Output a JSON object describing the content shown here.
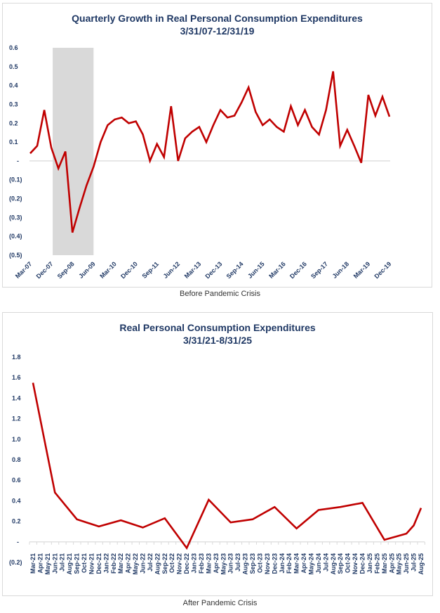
{
  "chart_data": [
    {
      "type": "line",
      "title": "Quarterly Growth in  Real Personal Consumption Expenditures",
      "subtitle": "3/31/07-12/31/19",
      "caption": "Before Pandemic Crisis",
      "xlabel": "",
      "ylabel": "",
      "ylim": [
        -0.5,
        0.6
      ],
      "yticks": [
        0.6,
        0.5,
        0.4,
        0.3,
        0.2,
        0.1,
        0,
        -0.1,
        -0.2,
        -0.3,
        -0.4,
        -0.5
      ],
      "ytick_labels": [
        "0.6",
        "0.5",
        "0.4",
        "0.3",
        "0.2",
        "0.1",
        "-",
        "(0.1)",
        "(0.2)",
        "(0.3)",
        "(0.4)",
        "(0.5)"
      ],
      "x_tick_labels": [
        "Mar-07",
        "Dec-07",
        "Sep-08",
        "Jun-09",
        "Mar-10",
        "Dec-10",
        "Sep-11",
        "Jun-12",
        "Mar-13",
        "Dec-13",
        "Sep-14",
        "Jun-15",
        "Mar-16",
        "Dec-16",
        "Sep-17",
        "Jun-18",
        "Mar-19",
        "Dec-19"
      ],
      "x_tick_every": 3,
      "grid": false,
      "recession_shading": {
        "from": "Dec-07",
        "to": "Jun-09",
        "color": "#d9d9d9"
      },
      "line_color": "#c00000",
      "x": [
        "Mar-07",
        "Jun-07",
        "Sep-07",
        "Dec-07",
        "Mar-08",
        "Jun-08",
        "Sep-08",
        "Dec-08",
        "Mar-09",
        "Jun-09",
        "Sep-09",
        "Dec-09",
        "Mar-10",
        "Jun-10",
        "Sep-10",
        "Dec-10",
        "Mar-11",
        "Jun-11",
        "Sep-11",
        "Dec-11",
        "Mar-12",
        "Jun-12",
        "Sep-12",
        "Dec-12",
        "Mar-13",
        "Jun-13",
        "Sep-13",
        "Dec-13",
        "Mar-14",
        "Jun-14",
        "Sep-14",
        "Dec-14",
        "Mar-15",
        "Jun-15",
        "Sep-15",
        "Dec-15",
        "Mar-16",
        "Jun-16",
        "Sep-16",
        "Dec-16",
        "Mar-17",
        "Jun-17",
        "Sep-17",
        "Dec-17",
        "Mar-18",
        "Jun-18",
        "Sep-18",
        "Dec-18",
        "Mar-19",
        "Jun-19",
        "Sep-19",
        "Dec-19"
      ],
      "series": [
        {
          "name": "Quarterly Growth",
          "values": [
            0.04,
            0.08,
            0.27,
            0.07,
            -0.04,
            0.05,
            -0.38,
            -0.25,
            -0.13,
            -0.03,
            0.1,
            0.19,
            0.22,
            0.23,
            0.2,
            0.21,
            0.14,
            0.0,
            0.09,
            0.02,
            0.29,
            0.0,
            0.12,
            0.155,
            0.18,
            0.1,
            0.19,
            0.27,
            0.23,
            0.24,
            0.31,
            0.39,
            0.26,
            0.19,
            0.22,
            0.18,
            0.155,
            0.29,
            0.19,
            0.27,
            0.18,
            0.14,
            0.27,
            0.475,
            0.08,
            0.165,
            0.08,
            -0.01,
            0.35,
            0.24,
            0.34,
            0.235
          ]
        }
      ]
    },
    {
      "type": "line",
      "title": "Real Personal Consumption  Expenditures",
      "subtitle": "3/31/21-8/31/25",
      "caption": "After Pandemic Crisis",
      "xlabel": "",
      "ylabel": "",
      "ylim": [
        -0.2,
        1.8
      ],
      "yticks": [
        1.8,
        1.6,
        1.4,
        1.2,
        1.0,
        0.8,
        0.6,
        0.4,
        0.2,
        0,
        -0.2
      ],
      "ytick_labels": [
        "1.8",
        "1.6",
        "1.4",
        "1.2",
        "1.0",
        "0.8",
        "0.6",
        "0.4",
        "0.2",
        "-",
        "(0.2)"
      ],
      "grid": false,
      "line_color": "#c00000",
      "x": [
        "Mar-21",
        "Apr-21",
        "May-21",
        "Jun-21",
        "Jul-21",
        "Aug-21",
        "Sep-21",
        "Oct-21",
        "Nov-21",
        "Dec-21",
        "Jan-22",
        "Feb-22",
        "Mar-22",
        "Apr-22",
        "May-22",
        "Jun-22",
        "Jul-22",
        "Aug-22",
        "Sep-22",
        "Oct-22",
        "Nov-22",
        "Dec-22",
        "Jan-23",
        "Feb-23",
        "Mar-23",
        "Apr-23",
        "May-23",
        "Jun-23",
        "Jul-23",
        "Aug-23",
        "Sep-23",
        "Oct-23",
        "Nov-23",
        "Dec-23",
        "Jan-24",
        "Feb-24",
        "Mar-24",
        "Apr-24",
        "May-24",
        "Jun-24",
        "Jul-24",
        "Aug-24",
        "Sep-24",
        "Oct-24",
        "Nov-24",
        "Dec-24",
        "Jan-25",
        "Feb-25",
        "Mar-25",
        "Apr-25",
        "May-25",
        "Jun-25",
        "Jul-25",
        "Aug-25"
      ],
      "series": [
        {
          "name": "Real PCE",
          "points": [
            {
              "x": "Mar-21",
              "y": 1.55
            },
            {
              "x": "Jun-21",
              "y": 0.48
            },
            {
              "x": "Sep-21",
              "y": 0.22
            },
            {
              "x": "Dec-21",
              "y": 0.15
            },
            {
              "x": "Mar-22",
              "y": 0.21
            },
            {
              "x": "Jun-22",
              "y": 0.14
            },
            {
              "x": "Sep-22",
              "y": 0.23
            },
            {
              "x": "Dec-22",
              "y": -0.06
            },
            {
              "x": "Mar-23",
              "y": 0.41
            },
            {
              "x": "Jun-23",
              "y": 0.19
            },
            {
              "x": "Sep-23",
              "y": 0.22
            },
            {
              "x": "Dec-23",
              "y": 0.34
            },
            {
              "x": "Mar-24",
              "y": 0.13
            },
            {
              "x": "Jun-24",
              "y": 0.31
            },
            {
              "x": "Sep-24",
              "y": 0.34
            },
            {
              "x": "Dec-24",
              "y": 0.38
            },
            {
              "x": "Mar-25",
              "y": 0.02
            },
            {
              "x": "Jun-25",
              "y": 0.08
            },
            {
              "x": "Jul-25",
              "y": 0.16
            },
            {
              "x": "Aug-25",
              "y": 0.33
            }
          ]
        }
      ]
    }
  ]
}
